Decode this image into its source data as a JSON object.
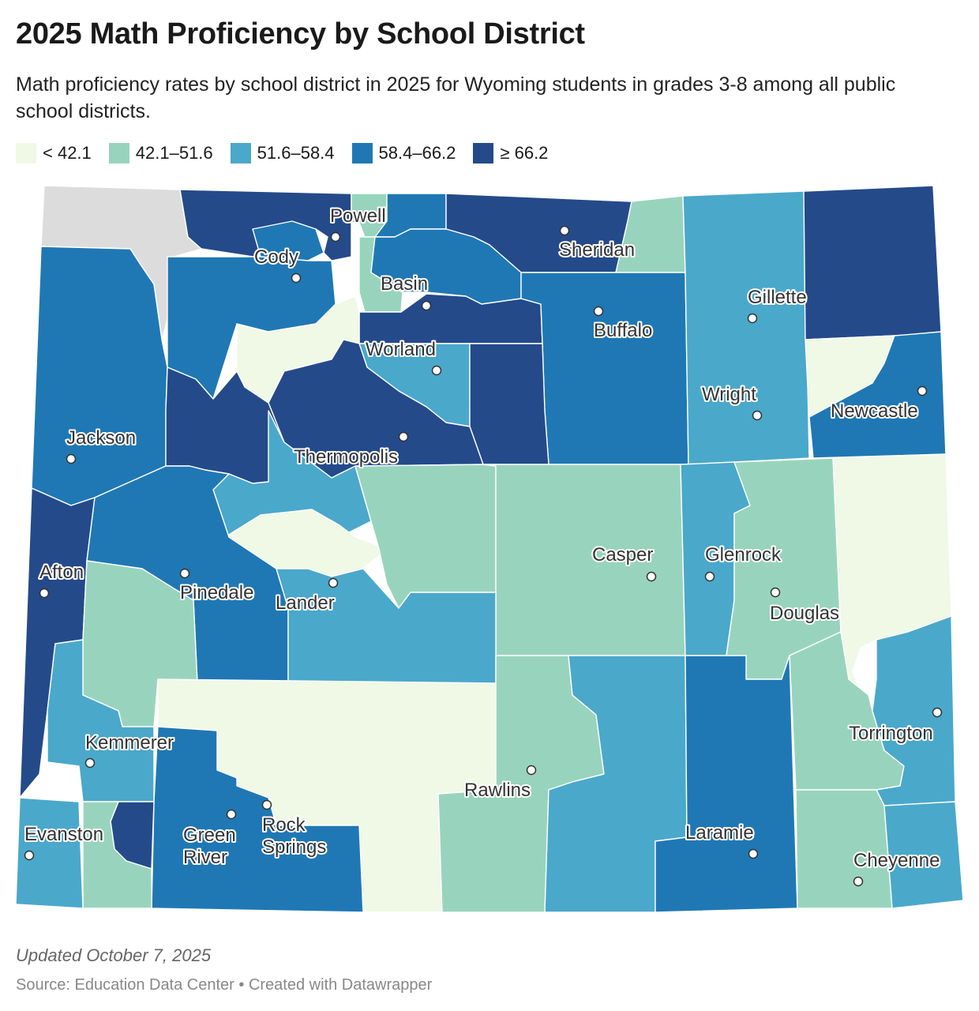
{
  "title": "2025 Math Proficiency by School District",
  "subtitle": "Math proficiency rates by school district in 2025 for Wyoming students in grades 3-8 among all public school districts.",
  "legend": [
    {
      "label": "< 42.1",
      "color": "#f0f8e6"
    },
    {
      "label": "42.1–51.6",
      "color": "#98d4bd"
    },
    {
      "label": "51.6–58.4",
      "color": "#4aa8cb"
    },
    {
      "label": "58.4–66.2",
      "color": "#1f78b4"
    },
    {
      "label": "≥ 66.2",
      "color": "#244a8a"
    }
  ],
  "no_data_color": "#dcdcdc",
  "cities": [
    "Powell",
    "Cody",
    "Sheridan",
    "Basin",
    "Buffalo",
    "Gillette",
    "Worland",
    "Wright",
    "Newcastle",
    "Jackson",
    "Thermopolis",
    "Casper",
    "Glenrock",
    "Afton",
    "Pinedale",
    "Lander",
    "Douglas",
    "Kemmerer",
    "Torrington",
    "Rawlins",
    "Evanston",
    "Green River",
    "Rock Springs",
    "Laramie",
    "Cheyenne"
  ],
  "footer": {
    "updated": "Updated October 7, 2025",
    "source": "Source: Education Data Center • Created with Datawrapper"
  }
}
